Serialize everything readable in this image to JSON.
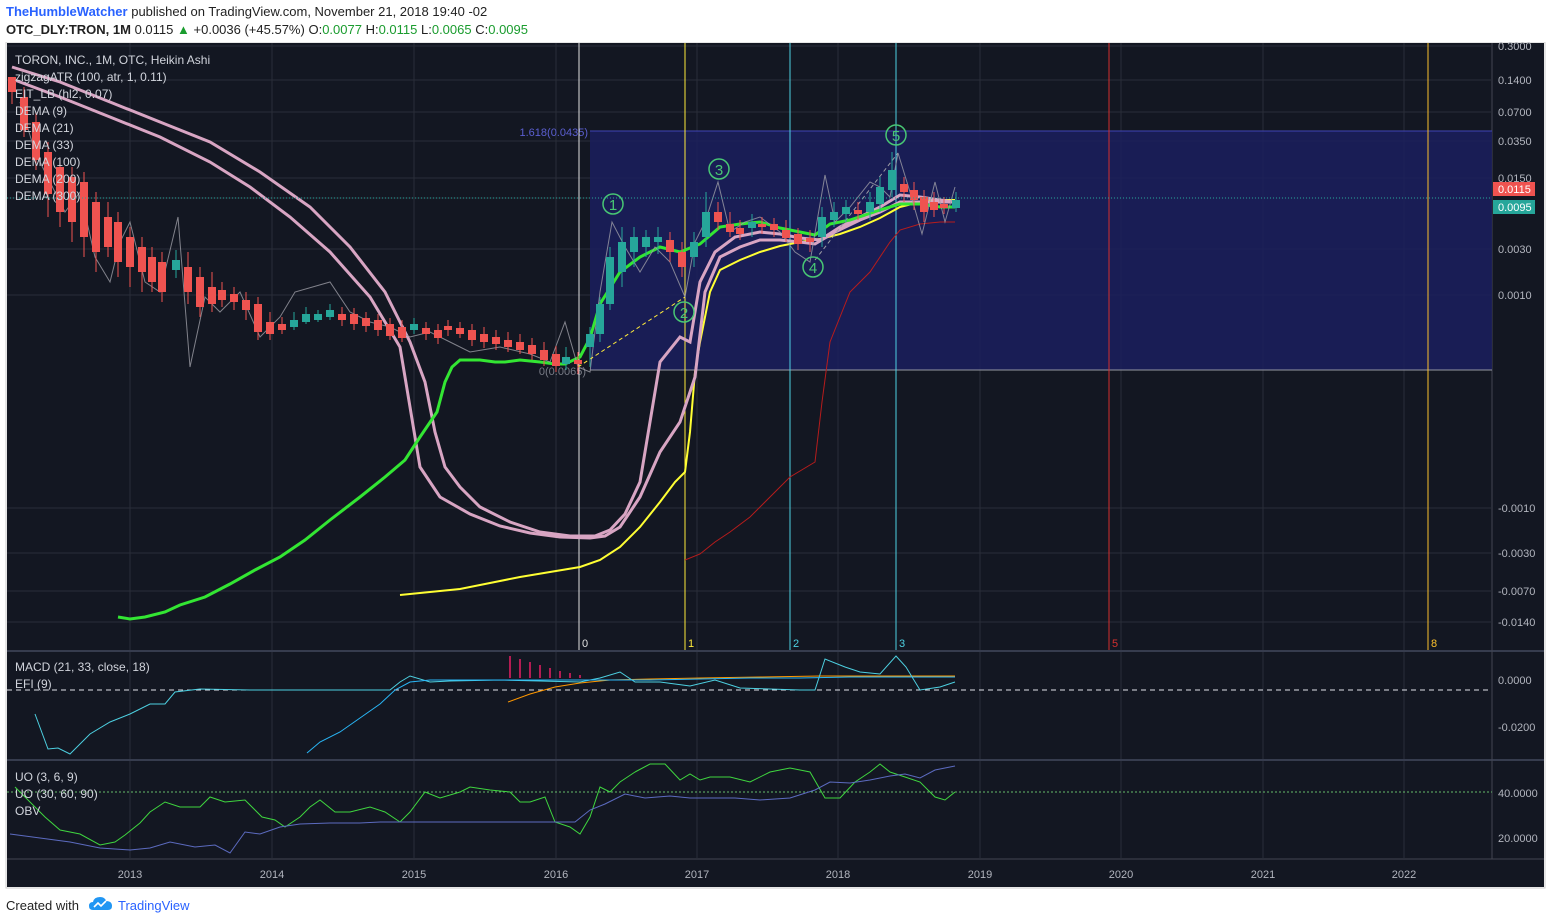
{
  "header": {
    "author": "TheHumbleWatcher",
    "published": "published on TradingView.com, November 21, 2018 19:40 -02",
    "symbol": "OTC_DLY:TRON, 1M",
    "last": "0.0115",
    "change_arrow": "▲",
    "change": "+0.0036 (+45.57%)",
    "o_label": "O:",
    "o": "0.0077",
    "h_label": "H:",
    "h": "0.0115",
    "l_label": "L:",
    "l": "0.0065",
    "c_label": "C:",
    "c": "0.0095"
  },
  "main_legend": [
    "TORON, INC., 1M, OTC, Heikin Ashi",
    "zigzagATR (100, atr, 1, 0.11)",
    "EIT_LB (hl2, 0.07)",
    "DEMA (9)",
    "DEMA (21)",
    "DEMA (33)",
    "DEMA (100)",
    "DEMA (200)",
    "DEMA (300)"
  ],
  "macd_legend": [
    "MACD (21, 33, close, 18)",
    "EFI (9)"
  ],
  "uo_legend": [
    "UO (3, 6, 9)",
    "UO (30, 60, 90)",
    "OBV"
  ],
  "price_axis": [
    "0.3000",
    "0.1400",
    "0.0700",
    "0.0350",
    "0.0150",
    "0.0030",
    "0.0010",
    "-0.0010",
    "-0.0030",
    "-0.0070",
    "-0.0140"
  ],
  "price_badges": {
    "last": "0.0115",
    "close": "0.0095",
    "last_color": "#ef5350",
    "close_color": "#26a69a"
  },
  "macd_axis": [
    "0.0000",
    "-0.0200"
  ],
  "uo_axis": [
    "40.0000",
    "20.0000"
  ],
  "time_axis": [
    "2013",
    "2014",
    "2015",
    "2016",
    "2017",
    "2018",
    "2019",
    "2020",
    "2021",
    "2022"
  ],
  "fib": {
    "top_label": "1.618(0.0435)",
    "bottom_label": "0(0.0065)"
  },
  "cycle_labels": [
    "0",
    "1",
    "2",
    "3",
    "5",
    "8"
  ],
  "waves": [
    "1",
    "2",
    "3",
    "4",
    "5"
  ],
  "colors": {
    "background": "#131722",
    "up": "#26a69a",
    "down": "#ef5350",
    "green_line": "#33e633",
    "yellow_line": "#ffff33",
    "pink_line": "#d8a5c3",
    "fib_fill": "#1b1e5e",
    "wave": "#48c774"
  },
  "footer": {
    "created_with": "Created with",
    "brand": "TradingView",
    "logo": "tradingview-cloud-icon"
  }
}
